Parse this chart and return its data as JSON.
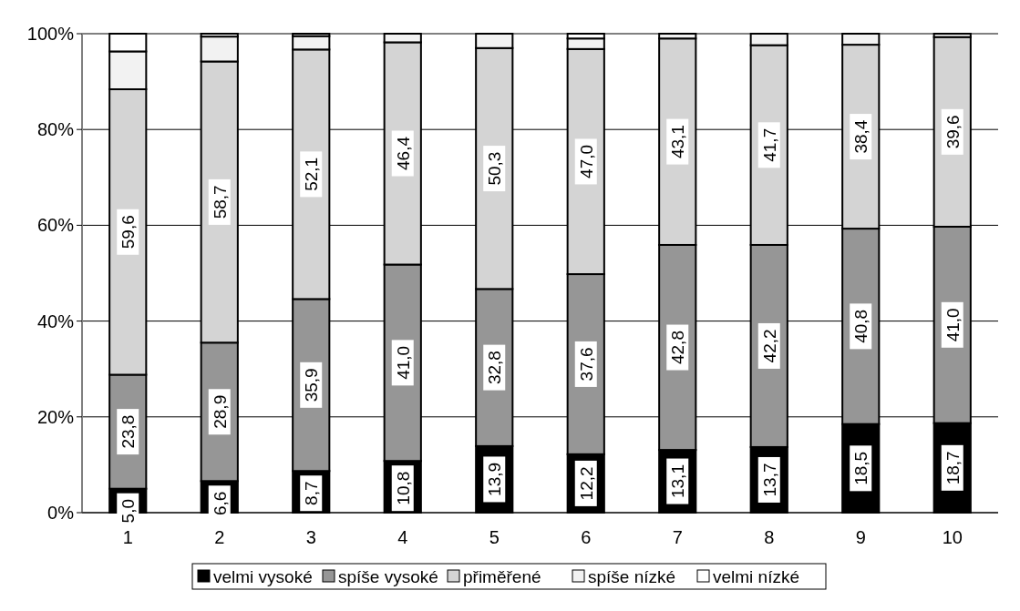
{
  "chart_data": {
    "type": "bar",
    "stacked": true,
    "categories": [
      "1",
      "2",
      "3",
      "4",
      "5",
      "6",
      "7",
      "8",
      "9",
      "10"
    ],
    "series": [
      {
        "name": "velmi vysoké",
        "color": "#000000",
        "values": [
          5.0,
          6.6,
          8.7,
          10.8,
          13.9,
          12.2,
          13.1,
          13.7,
          18.5,
          18.7
        ],
        "value_labels": [
          "5,0",
          "6,6",
          "8,7",
          "10,8",
          "13,9",
          "12,2",
          "13,1",
          "13,7",
          "18,5",
          "18,7"
        ]
      },
      {
        "name": "spíše vysoké",
        "color": "#969696",
        "values": [
          23.8,
          28.9,
          35.9,
          41.0,
          32.8,
          37.6,
          42.8,
          42.2,
          40.8,
          41.0
        ],
        "value_labels": [
          "23,8",
          "28,9",
          "35,9",
          "41,0",
          "32,8",
          "37,6",
          "42,8",
          "42,2",
          "40,8",
          "41,0"
        ]
      },
      {
        "name": "přiměřené",
        "color": "#d4d4d4",
        "values": [
          59.6,
          58.7,
          52.1,
          46.4,
          50.3,
          47.0,
          43.1,
          41.7,
          38.4,
          39.6
        ],
        "value_labels": [
          "59,6",
          "58,7",
          "52,1",
          "46,4",
          "50,3",
          "47,0",
          "43,1",
          "41,7",
          "38,4",
          "39,6"
        ]
      },
      {
        "name": "spíše nízké",
        "color": "#f2f2f2",
        "values": [
          7.9,
          5.2,
          2.8,
          1.8,
          3.0,
          2.2,
          1.0,
          2.4,
          2.3,
          0.7
        ]
      },
      {
        "name": "velmi nízké",
        "color": "#ffffff",
        "values": [
          3.7,
          0.6,
          0.5,
          0,
          0,
          1.0,
          0,
          0,
          0,
          0
        ]
      }
    ],
    "ylim": [
      0,
      100
    ],
    "yticks": [
      {
        "value": 0,
        "label": "0%"
      },
      {
        "value": 20,
        "label": "20%"
      },
      {
        "value": 40,
        "label": "40%"
      },
      {
        "value": 60,
        "label": "60%"
      },
      {
        "value": 80,
        "label": "80%"
      },
      {
        "value": 100,
        "label": "100%"
      }
    ],
    "grid": "y",
    "legend": "bottom"
  }
}
